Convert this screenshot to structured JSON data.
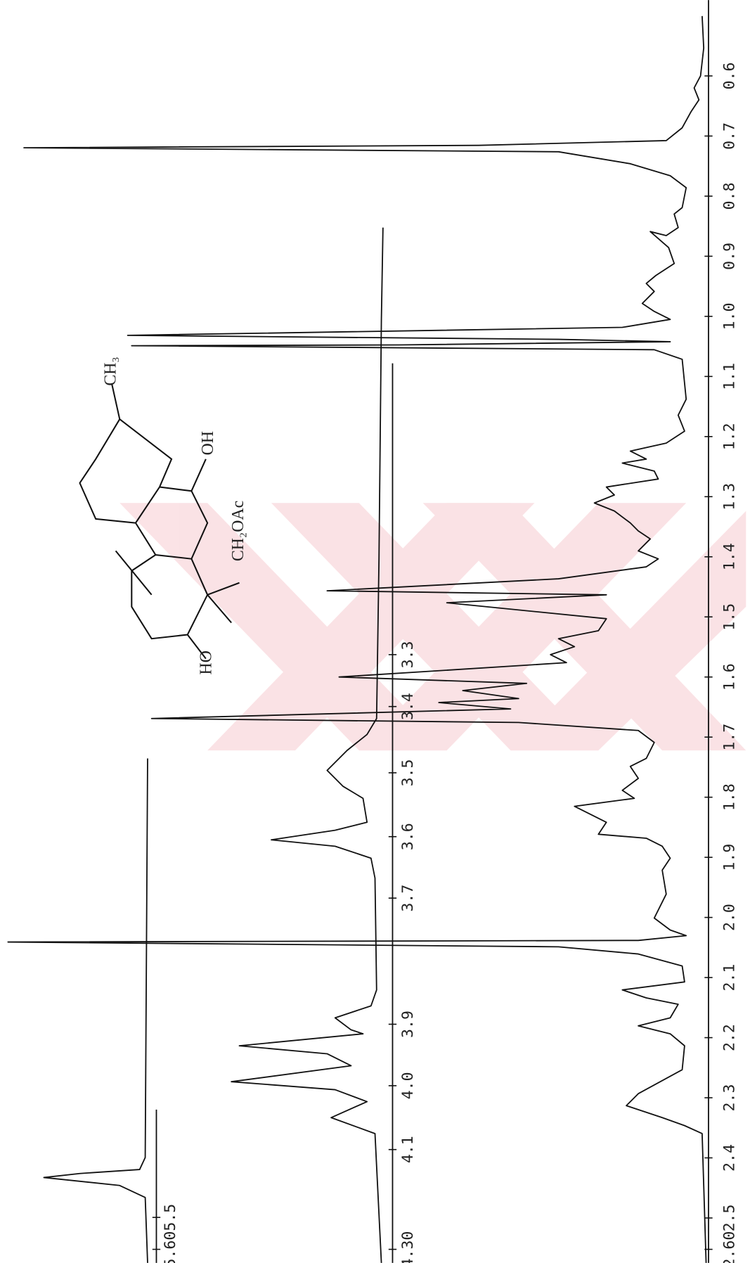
{
  "main_axis": {
    "ticks": [
      "0.6",
      "0.7",
      "0.8",
      "0.9",
      "1.0",
      "1.1",
      "1.2",
      "1.3",
      "1.4",
      "1.5",
      "1.6",
      "1.7",
      "1.8",
      "1.9",
      "2.0",
      "2.1",
      "2.2",
      "2.3",
      "2.4",
      "2.5",
      "2.60"
    ]
  },
  "middle_axis": {
    "ticks": [
      "3.3",
      "3.4",
      "3.5",
      "3.6",
      "3.7",
      "3.9",
      "4.0",
      "4.1",
      "4.30"
    ]
  },
  "left_axis": {
    "ticks": [
      "5.5",
      "5.60"
    ]
  },
  "structure": {
    "labels": [
      "CH₃",
      "OH",
      "CH₂OAc",
      "HO"
    ]
  }
}
